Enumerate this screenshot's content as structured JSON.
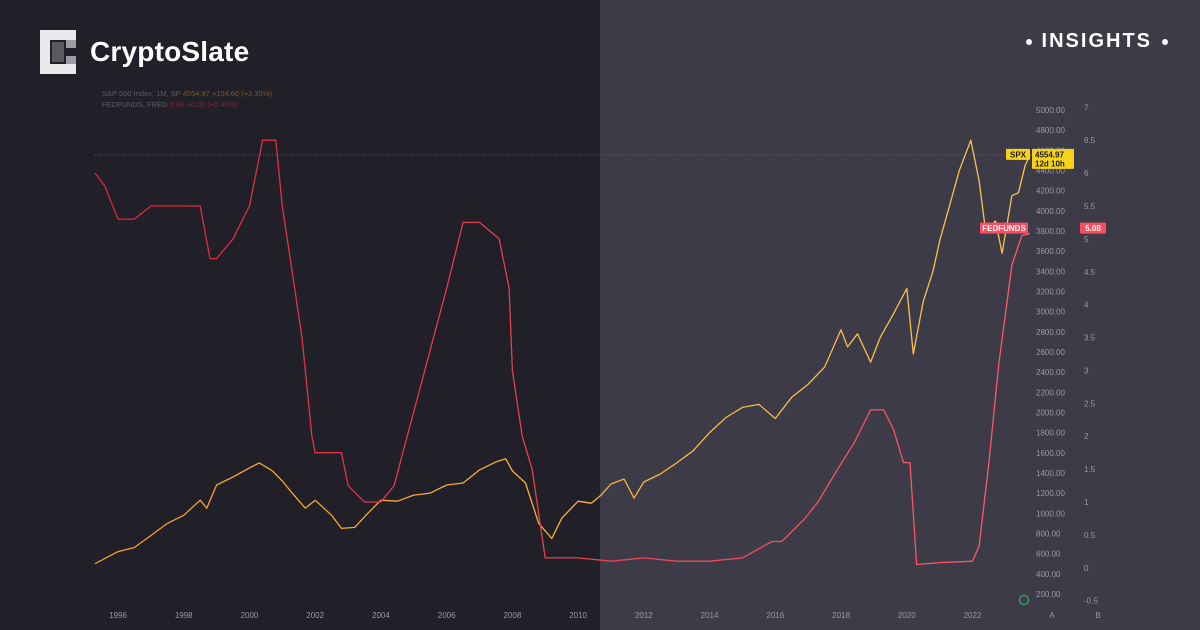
{
  "brand": {
    "name": "CryptoSlate",
    "badge": "INSIGHTS"
  },
  "legend": [
    {
      "label": "S&P 500 Index, 1M, SP",
      "values": "4554.97 +104.60 (+2.35%)"
    },
    {
      "label": "FEDFUNDS, FRED",
      "values": "5.08 +0.02 (+0.40%)"
    }
  ],
  "colors": {
    "spx": "#f5a623",
    "fed": "#ff4d5e",
    "tag_spx": "#f7d21b",
    "tag_fed": "#ff4d5e"
  },
  "tags": {
    "spx_name": "SPX",
    "spx_value": "4554.97",
    "spx_countdown": "12d 10h",
    "fed_name": "FEDFUNDS",
    "fed_value": "5.08"
  },
  "corner_labels": [
    "A",
    "B"
  ],
  "chart_data": {
    "type": "line",
    "xlim": [
      1995.3,
      2023.75
    ],
    "x_ticks": [
      "1996",
      "1998",
      "2000",
      "2002",
      "2004",
      "2006",
      "2008",
      "2010",
      "2012",
      "2014",
      "2016",
      "2018",
      "2020",
      "2022"
    ],
    "y_spx": {
      "ylim": [
        100,
        5060
      ],
      "ticks": [
        "5000.00",
        "4800.00",
        "4600.00",
        "4400.00",
        "4200.00",
        "4000.00",
        "3800.00",
        "3600.00",
        "3400.00",
        "3200.00",
        "3000.00",
        "2800.00",
        "2600.00",
        "2400.00",
        "2200.00",
        "2000.00",
        "1800.00",
        "1600.00",
        "1400.00",
        "1200.00",
        "1000.00",
        "800.00",
        "600.00",
        "400.00",
        "200.00"
      ]
    },
    "y_fed": {
      "ylim": [
        -0.55,
        7.05
      ],
      "ticks": [
        "7",
        "6.5",
        "6",
        "5.5",
        "5",
        "4.5",
        "4",
        "3.5",
        "3",
        "2.5",
        "2",
        "1.5",
        "1",
        "0.5",
        "0",
        "-0.5"
      ]
    },
    "series": [
      {
        "name": "S&P 500 Index, 1M, SP",
        "axis": "spx",
        "x": [
          1995.3,
          1996.0,
          1996.5,
          1997.0,
          1997.5,
          1998.0,
          1998.5,
          1998.7,
          1999.0,
          1999.5,
          2000.0,
          2000.3,
          2000.7,
          2001.0,
          2001.3,
          2001.7,
          2002.0,
          2002.5,
          2002.8,
          2003.2,
          2003.6,
          2004.0,
          2004.5,
          2005.0,
          2005.5,
          2006.0,
          2006.5,
          2007.0,
          2007.5,
          2007.8,
          2008.0,
          2008.4,
          2008.8,
          2009.2,
          2009.5,
          2010.0,
          2010.4,
          2010.7,
          2011.0,
          2011.4,
          2011.7,
          2012.0,
          2012.5,
          2013.0,
          2013.5,
          2014.0,
          2014.5,
          2015.0,
          2015.5,
          2016.0,
          2016.5,
          2017.0,
          2017.5,
          2018.0,
          2018.2,
          2018.5,
          2018.9,
          2019.2,
          2019.6,
          2020.0,
          2020.2,
          2020.5,
          2020.8,
          2021.0,
          2021.3,
          2021.6,
          2021.95,
          2022.2,
          2022.4,
          2022.7,
          2022.9,
          2023.2,
          2023.4,
          2023.6,
          2023.75
        ],
        "y": [
          500,
          620,
          660,
          780,
          900,
          980,
          1130,
          1050,
          1280,
          1360,
          1450,
          1500,
          1420,
          1320,
          1200,
          1050,
          1130,
          980,
          850,
          860,
          1000,
          1130,
          1120,
          1180,
          1200,
          1280,
          1300,
          1430,
          1510,
          1540,
          1420,
          1300,
          900,
          750,
          950,
          1120,
          1100,
          1180,
          1290,
          1340,
          1150,
          1310,
          1390,
          1500,
          1620,
          1800,
          1950,
          2050,
          2080,
          1940,
          2150,
          2280,
          2450,
          2820,
          2650,
          2780,
          2500,
          2750,
          2980,
          3230,
          2580,
          3100,
          3400,
          3700,
          4050,
          4400,
          4700,
          4300,
          3800,
          3900,
          3580,
          4150,
          4180,
          4450,
          4554.97
        ]
      },
      {
        "name": "FEDFUNDS, FRED",
        "axis": "fed",
        "x": [
          1995.3,
          1995.6,
          1996.0,
          1996.5,
          1997.0,
          1997.5,
          1998.0,
          1998.5,
          1998.8,
          1999.0,
          1999.5,
          2000.0,
          2000.4,
          2000.8,
          2001.0,
          2001.3,
          2001.6,
          2001.9,
          2002.0,
          2002.8,
          2003.0,
          2003.5,
          2004.0,
          2004.4,
          2004.8,
          2005.2,
          2005.6,
          2006.0,
          2006.5,
          2007.0,
          2007.6,
          2007.9,
          2008.0,
          2008.3,
          2008.6,
          2009.0,
          2010.0,
          2011.0,
          2012.0,
          2013.0,
          2014.0,
          2015.0,
          2015.9,
          2016.2,
          2016.9,
          2017.3,
          2017.9,
          2018.4,
          2018.9,
          2019.3,
          2019.6,
          2019.9,
          2020.1,
          2020.3,
          2021.0,
          2022.0,
          2022.2,
          2022.5,
          2022.8,
          2023.2,
          2023.5,
          2023.75
        ],
        "y": [
          6.0,
          5.8,
          5.3,
          5.3,
          5.5,
          5.5,
          5.5,
          5.5,
          4.7,
          4.7,
          5.0,
          5.5,
          6.5,
          6.5,
          5.5,
          4.5,
          3.5,
          2.0,
          1.75,
          1.75,
          1.25,
          1.0,
          1.0,
          1.25,
          2.0,
          2.75,
          3.5,
          4.25,
          5.25,
          5.25,
          5.0,
          4.25,
          3.0,
          2.0,
          1.5,
          0.15,
          0.15,
          0.1,
          0.15,
          0.1,
          0.1,
          0.15,
          0.4,
          0.4,
          0.75,
          1.0,
          1.5,
          1.9,
          2.4,
          2.4,
          2.1,
          1.6,
          1.6,
          0.05,
          0.08,
          0.1,
          0.33,
          1.6,
          3.1,
          4.6,
          5.05,
          5.08
        ]
      }
    ]
  }
}
